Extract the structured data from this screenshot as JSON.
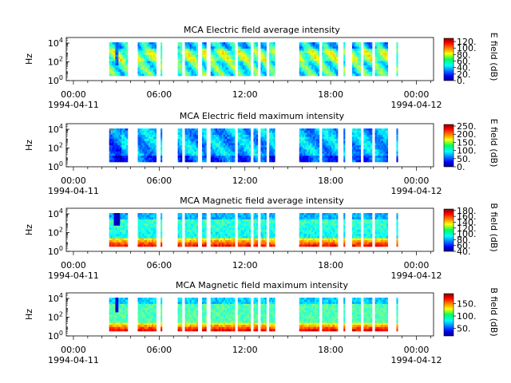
{
  "chart_data": [
    {
      "type": "heatmap",
      "title": "MCA  Electric field average intensity",
      "ylabel": "Hz",
      "colorbar_label": "E field (dB)",
      "colorbar_range": [
        0,
        130
      ],
      "colorbar_ticks": [
        "0.",
        "20.",
        "40.",
        "60.",
        "80.",
        "100.",
        "120."
      ],
      "colorbar_tick_values": [
        0,
        20,
        40,
        60,
        80,
        100,
        120
      ],
      "style": "e_avg"
    },
    {
      "type": "heatmap",
      "title": "MCA  Electric field maximum intensity",
      "ylabel": "Hz",
      "colorbar_label": "E field (dB)",
      "colorbar_range": [
        0,
        260
      ],
      "colorbar_ticks": [
        "0.",
        "50.",
        "100.",
        "150.",
        "200.",
        "250."
      ],
      "colorbar_tick_values": [
        0,
        50,
        100,
        150,
        200,
        250
      ],
      "style": "e_max"
    },
    {
      "type": "heatmap",
      "title": "MCA  Magnetic field average intensity",
      "ylabel": "Hz",
      "colorbar_label": "B field (dB)",
      "colorbar_range": [
        40,
        185
      ],
      "colorbar_ticks": [
        "40.",
        "60.",
        "80.",
        "100.",
        "120.",
        "140.",
        "160.",
        "180."
      ],
      "colorbar_tick_values": [
        40,
        60,
        80,
        100,
        120,
        140,
        160,
        180
      ],
      "style": "b_avg"
    },
    {
      "type": "heatmap",
      "title": "MCA  Magnetic field maximum intensity",
      "ylabel": "Hz",
      "colorbar_label": "B field (dB)",
      "colorbar_range": [
        20,
        190
      ],
      "colorbar_ticks": [
        "50.",
        "100.",
        "150."
      ],
      "colorbar_tick_values": [
        50,
        100,
        150
      ],
      "style": "b_max"
    }
  ],
  "shared": {
    "x_range_hours": [
      -0.5,
      25.2
    ],
    "x_ticks_hours": [
      0,
      6,
      12,
      18,
      24
    ],
    "x_tick_labels": [
      "00:00",
      "06:00",
      "12:00",
      "18:00",
      "00:00"
    ],
    "x_date_labels": [
      {
        "hour": 0,
        "label": "1994-04-11"
      },
      {
        "hour": 24,
        "label": "1994-04-12"
      }
    ],
    "y_ticks_log10": [
      0,
      2,
      4
    ],
    "y_range_log10": [
      0,
      4.6
    ],
    "data_segments_hours": [
      [
        2.5,
        3.8
      ],
      [
        4.5,
        5.8
      ],
      [
        6.1,
        6.2
      ],
      [
        7.3,
        7.6
      ],
      [
        7.8,
        8.7
      ],
      [
        9.0,
        9.3
      ],
      [
        9.6,
        11.3
      ],
      [
        11.5,
        12.4
      ],
      [
        12.6,
        12.9
      ],
      [
        13.1,
        13.5
      ],
      [
        13.7,
        14.1
      ],
      [
        15.8,
        17.2
      ],
      [
        17.4,
        18.5
      ],
      [
        18.9,
        19.0
      ],
      [
        19.5,
        20.1
      ],
      [
        20.3,
        20.9
      ],
      [
        21.1,
        22.0
      ],
      [
        22.6,
        22.7
      ]
    ]
  }
}
